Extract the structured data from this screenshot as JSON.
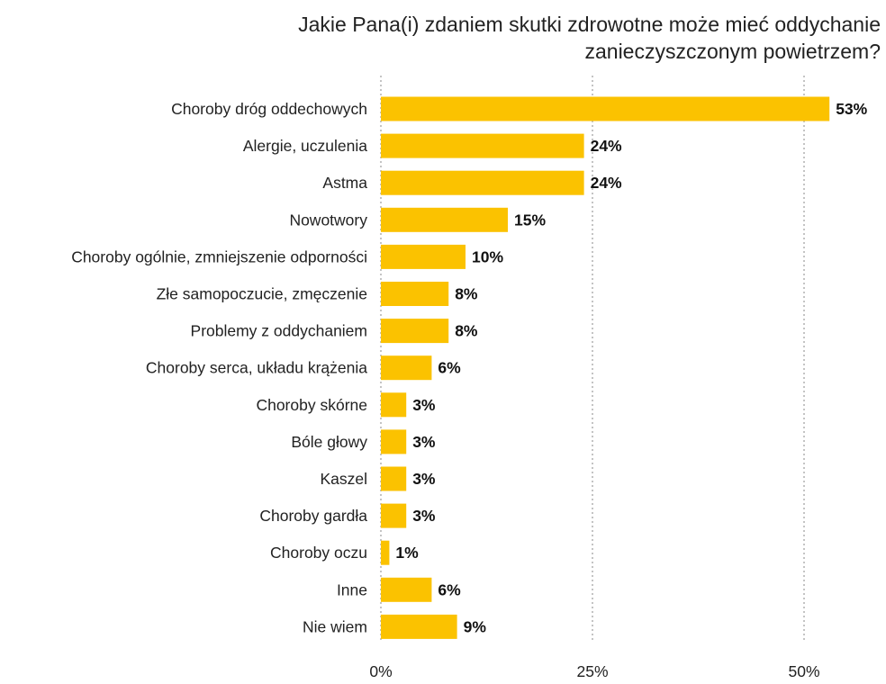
{
  "chart_data": {
    "type": "bar",
    "orientation": "horizontal",
    "title": [
      "Jakie Pana(i) zdaniem skutki zdrowotne może mieć oddychanie",
      "zanieczyszczonym powietrzem?"
    ],
    "categories": [
      "Choroby dróg oddechowych",
      "Alergie, uczulenia",
      "Astma",
      "Nowotwory",
      "Choroby ogólnie, zmniejszenie odporności",
      "Złe samopoczucie, zmęczenie",
      "Problemy z oddychaniem",
      "Choroby serca, układu krążenia",
      "Choroby skórne",
      "Bóle głowy",
      "Kaszel",
      "Choroby gardła",
      "Choroby oczu",
      "Inne",
      "Nie wiem"
    ],
    "values": [
      53,
      24,
      24,
      15,
      10,
      8,
      8,
      6,
      3,
      3,
      3,
      3,
      1,
      6,
      9
    ],
    "value_labels": [
      "53%",
      "24%",
      "24%",
      "15%",
      "10%",
      "8%",
      "8%",
      "6%",
      "3%",
      "3%",
      "3%",
      "3%",
      "1%",
      "6%",
      "9%"
    ],
    "xlim": [
      0,
      60
    ],
    "xticks": [
      0,
      25,
      50
    ],
    "xtick_labels": [
      "0%",
      "25%",
      "50%"
    ],
    "grid": "vertical dashed",
    "bar_color": "#FBC200",
    "grid_color": "#888888"
  }
}
